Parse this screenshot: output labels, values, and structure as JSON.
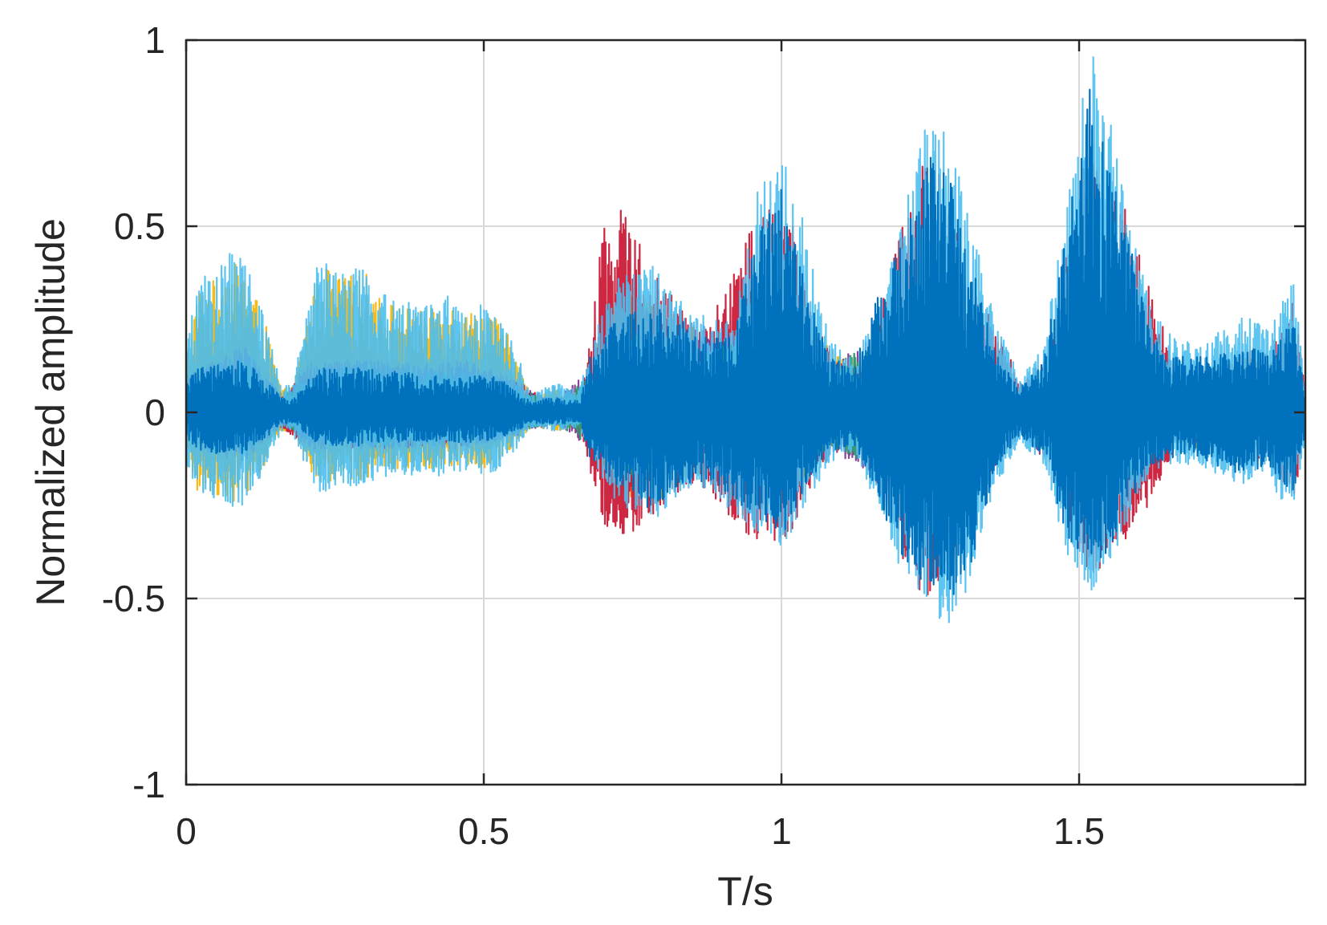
{
  "chart_data": {
    "type": "line",
    "title": "",
    "xlabel": "T/s",
    "ylabel": "Normalized amplitude",
    "xlim": [
      0,
      1.88
    ],
    "ylim": [
      -1,
      1
    ],
    "xticks": [
      "0",
      "0.5",
      "1",
      "1.5"
    ],
    "xtick_values": [
      0,
      0.5,
      1,
      1.5
    ],
    "yticks": [
      "1",
      "0.5",
      "0",
      "-0.5",
      "-1"
    ],
    "ytick_values": [
      1,
      0.5,
      0,
      -0.5,
      -1
    ],
    "grid": true,
    "legend": "none",
    "colors": {
      "series": [
        "#F5B400",
        "#C8102E",
        "#7E2F8E",
        "#2E9E6B",
        "#4DBEEE",
        "#0072BD"
      ],
      "axes": "#262626",
      "grid": "#d9d9d9"
    },
    "series": [
      {
        "color": "#F5B400",
        "envelope": {
          "t": [
            0.0,
            0.02,
            0.05,
            0.08,
            0.1,
            0.13,
            0.16,
            0.18,
            0.21,
            0.23,
            0.26,
            0.3,
            0.33,
            0.36,
            0.4,
            0.44,
            0.47,
            0.51,
            0.54,
            0.58,
            0.62,
            0.66,
            0.68,
            0.72,
            0.78,
            0.83,
            0.88,
            0.92,
            0.96,
            1.0,
            1.04,
            1.08,
            1.12,
            1.16,
            1.2,
            1.25,
            1.3,
            1.34,
            1.38,
            1.42,
            1.46,
            1.5,
            1.54,
            1.58,
            1.62,
            1.66,
            1.7,
            1.74,
            1.78,
            1.82,
            1.86,
            1.88
          ],
          "upper": [
            0.15,
            0.33,
            0.36,
            0.4,
            0.38,
            0.26,
            0.06,
            0.07,
            0.3,
            0.4,
            0.36,
            0.38,
            0.3,
            0.29,
            0.27,
            0.3,
            0.27,
            0.28,
            0.21,
            0.04,
            0.07,
            0.05,
            0.14,
            0.3,
            0.33,
            0.25,
            0.2,
            0.14,
            0.22,
            0.33,
            0.22,
            0.18,
            0.12,
            0.05,
            0.2,
            0.44,
            0.3,
            0.12,
            0.07,
            0.05,
            0.14,
            0.3,
            0.38,
            0.28,
            0.13,
            0.13,
            0.14,
            0.12,
            0.16,
            0.14,
            0.16,
            0.05
          ],
          "lower": [
            -0.12,
            -0.22,
            -0.22,
            -0.24,
            -0.22,
            -0.15,
            -0.05,
            -0.05,
            -0.17,
            -0.2,
            -0.18,
            -0.18,
            -0.16,
            -0.15,
            -0.15,
            -0.15,
            -0.14,
            -0.15,
            -0.11,
            -0.04,
            -0.05,
            -0.04,
            -0.1,
            -0.22,
            -0.26,
            -0.2,
            -0.16,
            -0.12,
            -0.18,
            -0.26,
            -0.18,
            -0.12,
            -0.08,
            -0.05,
            -0.2,
            -0.34,
            -0.24,
            -0.1,
            -0.06,
            -0.05,
            -0.12,
            -0.25,
            -0.28,
            -0.2,
            -0.1,
            -0.1,
            -0.1,
            -0.09,
            -0.11,
            -0.1,
            -0.11,
            -0.04
          ]
        }
      },
      {
        "color": "#C8102E",
        "envelope": {
          "t": [
            0.0,
            0.05,
            0.1,
            0.16,
            0.21,
            0.26,
            0.33,
            0.4,
            0.47,
            0.54,
            0.6,
            0.66,
            0.68,
            0.7,
            0.73,
            0.75,
            0.78,
            0.82,
            0.86,
            0.9,
            0.94,
            0.98,
            1.02,
            1.06,
            1.1,
            1.14,
            1.17,
            1.2,
            1.24,
            1.28,
            1.32,
            1.36,
            1.4,
            1.44,
            1.48,
            1.52,
            1.55,
            1.58,
            1.62,
            1.66,
            1.7,
            1.74,
            1.78,
            1.82,
            1.86,
            1.88
          ],
          "upper": [
            0.1,
            0.15,
            0.18,
            0.05,
            0.14,
            0.14,
            0.14,
            0.13,
            0.14,
            0.1,
            0.04,
            0.04,
            0.2,
            0.5,
            0.56,
            0.5,
            0.43,
            0.3,
            0.22,
            0.32,
            0.47,
            0.55,
            0.5,
            0.22,
            0.14,
            0.12,
            0.3,
            0.5,
            0.7,
            0.6,
            0.36,
            0.22,
            0.1,
            0.08,
            0.44,
            0.8,
            0.6,
            0.55,
            0.35,
            0.12,
            0.1,
            0.12,
            0.18,
            0.15,
            0.3,
            0.08
          ],
          "lower": [
            -0.08,
            -0.12,
            -0.13,
            -0.04,
            -0.1,
            -0.1,
            -0.1,
            -0.09,
            -0.1,
            -0.07,
            -0.03,
            -0.03,
            -0.18,
            -0.3,
            -0.33,
            -0.35,
            -0.3,
            -0.22,
            -0.18,
            -0.27,
            -0.33,
            -0.38,
            -0.32,
            -0.16,
            -0.1,
            -0.08,
            -0.26,
            -0.4,
            -0.52,
            -0.45,
            -0.28,
            -0.14,
            -0.07,
            -0.06,
            -0.3,
            -0.45,
            -0.4,
            -0.36,
            -0.24,
            -0.1,
            -0.08,
            -0.1,
            -0.14,
            -0.12,
            -0.25,
            -0.06
          ]
        }
      },
      {
        "color": "#7E2F8E",
        "envelope": {
          "t": [
            0.0,
            0.05,
            0.1,
            0.16,
            0.21,
            0.26,
            0.33,
            0.4,
            0.47,
            0.54,
            0.62,
            0.68,
            0.75,
            0.82,
            0.9,
            1.0,
            1.08,
            1.17,
            1.25,
            1.32,
            1.4,
            1.48,
            1.52,
            1.58,
            1.66,
            1.74,
            1.82,
            1.88
          ],
          "upper": [
            0.08,
            0.14,
            0.17,
            0.04,
            0.12,
            0.13,
            0.14,
            0.12,
            0.12,
            0.09,
            0.03,
            0.12,
            0.25,
            0.2,
            0.2,
            0.28,
            0.14,
            0.22,
            0.35,
            0.25,
            0.06,
            0.24,
            0.36,
            0.28,
            0.1,
            0.1,
            0.1,
            0.05
          ],
          "lower": [
            -0.06,
            -0.1,
            -0.12,
            -0.03,
            -0.09,
            -0.09,
            -0.1,
            -0.09,
            -0.09,
            -0.07,
            -0.03,
            -0.1,
            -0.2,
            -0.16,
            -0.16,
            -0.22,
            -0.1,
            -0.18,
            -0.28,
            -0.2,
            -0.05,
            -0.2,
            -0.28,
            -0.22,
            -0.08,
            -0.08,
            -0.08,
            -0.04
          ]
        }
      },
      {
        "color": "#2E9E6B",
        "envelope": {
          "t": [
            0.0,
            0.05,
            0.1,
            0.16,
            0.21,
            0.26,
            0.33,
            0.4,
            0.47,
            0.54,
            0.62,
            0.68,
            0.75,
            0.82,
            0.9,
            1.0,
            1.08,
            1.17,
            1.25,
            1.32,
            1.4,
            1.48,
            1.52,
            1.58,
            1.66,
            1.74,
            1.82,
            1.88
          ],
          "upper": [
            0.07,
            0.12,
            0.14,
            0.04,
            0.11,
            0.12,
            0.12,
            0.11,
            0.11,
            0.08,
            0.03,
            0.1,
            0.22,
            0.18,
            0.18,
            0.26,
            0.12,
            0.2,
            0.32,
            0.22,
            0.05,
            0.22,
            0.32,
            0.25,
            0.09,
            0.09,
            0.09,
            0.05
          ],
          "lower": [
            -0.05,
            -0.09,
            -0.1,
            -0.03,
            -0.08,
            -0.08,
            -0.09,
            -0.08,
            -0.08,
            -0.06,
            -0.03,
            -0.09,
            -0.18,
            -0.14,
            -0.14,
            -0.2,
            -0.09,
            -0.16,
            -0.26,
            -0.18,
            -0.04,
            -0.18,
            -0.26,
            -0.2,
            -0.07,
            -0.07,
            -0.07,
            -0.04
          ]
        }
      },
      {
        "color": "#4DBEEE",
        "envelope": {
          "t": [
            0.0,
            0.02,
            0.05,
            0.08,
            0.1,
            0.13,
            0.16,
            0.18,
            0.21,
            0.23,
            0.26,
            0.3,
            0.33,
            0.36,
            0.4,
            0.44,
            0.47,
            0.51,
            0.54,
            0.58,
            0.62,
            0.66,
            0.68,
            0.72,
            0.78,
            0.83,
            0.88,
            0.92,
            0.96,
            1.0,
            1.04,
            1.08,
            1.12,
            1.17,
            1.2,
            1.25,
            1.28,
            1.32,
            1.36,
            1.4,
            1.44,
            1.48,
            1.52,
            1.55,
            1.58,
            1.62,
            1.66,
            1.7,
            1.74,
            1.78,
            1.82,
            1.86,
            1.88
          ],
          "upper": [
            0.18,
            0.36,
            0.38,
            0.44,
            0.4,
            0.28,
            0.07,
            0.08,
            0.34,
            0.44,
            0.38,
            0.4,
            0.32,
            0.3,
            0.29,
            0.32,
            0.3,
            0.3,
            0.23,
            0.05,
            0.08,
            0.06,
            0.18,
            0.36,
            0.4,
            0.3,
            0.25,
            0.24,
            0.6,
            0.7,
            0.5,
            0.2,
            0.14,
            0.3,
            0.5,
            0.82,
            0.75,
            0.5,
            0.24,
            0.1,
            0.18,
            0.56,
            1.0,
            0.8,
            0.55,
            0.28,
            0.2,
            0.18,
            0.22,
            0.26,
            0.22,
            0.36,
            0.08
          ],
          "lower": [
            -0.14,
            -0.22,
            -0.24,
            -0.27,
            -0.24,
            -0.17,
            -0.05,
            -0.06,
            -0.19,
            -0.22,
            -0.2,
            -0.2,
            -0.18,
            -0.17,
            -0.17,
            -0.17,
            -0.16,
            -0.17,
            -0.13,
            -0.04,
            -0.05,
            -0.04,
            -0.12,
            -0.24,
            -0.3,
            -0.22,
            -0.2,
            -0.28,
            -0.32,
            -0.38,
            -0.25,
            -0.14,
            -0.1,
            -0.3,
            -0.42,
            -0.53,
            -0.58,
            -0.45,
            -0.2,
            -0.08,
            -0.14,
            -0.4,
            -0.48,
            -0.42,
            -0.3,
            -0.16,
            -0.14,
            -0.14,
            -0.18,
            -0.2,
            -0.18,
            -0.3,
            -0.06
          ]
        }
      },
      {
        "color": "#0072BD",
        "envelope": {
          "t": [
            0.0,
            0.02,
            0.05,
            0.08,
            0.1,
            0.13,
            0.16,
            0.18,
            0.21,
            0.23,
            0.26,
            0.3,
            0.33,
            0.36,
            0.4,
            0.44,
            0.47,
            0.51,
            0.54,
            0.58,
            0.62,
            0.66,
            0.68,
            0.72,
            0.78,
            0.83,
            0.88,
            0.92,
            0.96,
            1.0,
            1.04,
            1.08,
            1.12,
            1.17,
            1.2,
            1.25,
            1.28,
            1.32,
            1.36,
            1.4,
            1.44,
            1.48,
            1.52,
            1.55,
            1.58,
            1.62,
            1.66,
            1.7,
            1.74,
            1.78,
            1.82,
            1.86,
            1.88
          ],
          "upper": [
            0.08,
            0.12,
            0.13,
            0.14,
            0.14,
            0.1,
            0.04,
            0.04,
            0.1,
            0.12,
            0.12,
            0.12,
            0.11,
            0.11,
            0.1,
            0.1,
            0.1,
            0.1,
            0.08,
            0.03,
            0.04,
            0.03,
            0.16,
            0.24,
            0.3,
            0.25,
            0.2,
            0.2,
            0.5,
            0.6,
            0.35,
            0.15,
            0.12,
            0.35,
            0.45,
            0.7,
            0.65,
            0.4,
            0.16,
            0.07,
            0.14,
            0.5,
            0.9,
            0.65,
            0.5,
            0.2,
            0.16,
            0.15,
            0.16,
            0.18,
            0.16,
            0.25,
            0.05
          ],
          "lower": [
            -0.07,
            -0.1,
            -0.11,
            -0.11,
            -0.11,
            -0.08,
            -0.03,
            -0.03,
            -0.08,
            -0.09,
            -0.09,
            -0.09,
            -0.08,
            -0.08,
            -0.08,
            -0.08,
            -0.08,
            -0.08,
            -0.06,
            -0.03,
            -0.03,
            -0.03,
            -0.14,
            -0.2,
            -0.26,
            -0.2,
            -0.18,
            -0.24,
            -0.28,
            -0.34,
            -0.2,
            -0.12,
            -0.08,
            -0.28,
            -0.38,
            -0.48,
            -0.52,
            -0.4,
            -0.15,
            -0.06,
            -0.12,
            -0.34,
            -0.42,
            -0.38,
            -0.26,
            -0.14,
            -0.12,
            -0.12,
            -0.15,
            -0.17,
            -0.15,
            -0.24,
            -0.05
          ]
        }
      }
    ]
  }
}
